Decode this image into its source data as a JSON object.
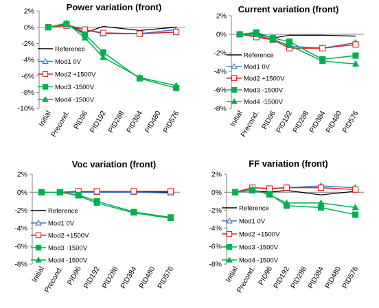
{
  "figure": {
    "categories": [
      "Initial",
      "Precond.",
      "PID96",
      "PID192",
      "PID288",
      "PID384",
      "PID480",
      "PID576"
    ],
    "series_style": [
      {
        "name": "Reference",
        "color": "#000000",
        "marker": "none"
      },
      {
        "name": "Mod1 0V",
        "color": "#4472c4",
        "marker": "triangle-open"
      },
      {
        "name": "Mod2 +1500V",
        "color": "#e0241b",
        "marker": "square-open"
      },
      {
        "name": "Mod3 -1500V",
        "color": "#00b050",
        "marker": "square-filled"
      },
      {
        "name": "Mod4 -1500V",
        "color": "#00b050",
        "marker": "triangle-filled"
      }
    ]
  },
  "chart_data": [
    {
      "type": "line",
      "title": "Power variation (front)",
      "xlabel": "",
      "ylabel": "",
      "ylim": [
        -10,
        2
      ],
      "yticks": [
        -10,
        -8,
        -6,
        -4,
        -2,
        0,
        2
      ],
      "ytick_labels": [
        "-10%",
        "-8%",
        "-6%",
        "-4%",
        "-2%",
        "0%",
        "2%"
      ],
      "categories": [
        "Initial",
        "Precond.",
        "PID96",
        "PID192",
        "PID288",
        "PID384",
        "PID480",
        "PID576"
      ],
      "legend": "center-left",
      "grid": false,
      "series": [
        {
          "name": "Reference",
          "values": [
            0,
            0.4,
            -0.7,
            0.1,
            null,
            -0.4,
            null,
            0.0
          ]
        },
        {
          "name": "Mod1 0V",
          "values": [
            0,
            0.3,
            -0.3,
            -0.8,
            null,
            -0.8,
            null,
            -0.3
          ]
        },
        {
          "name": "Mod2 +1500V",
          "values": [
            0,
            0.2,
            -0.3,
            -0.7,
            null,
            -0.8,
            null,
            -0.6
          ]
        },
        {
          "name": "Mod3 -1500V",
          "values": [
            0,
            0.4,
            -0.9,
            -3.1,
            null,
            -6.3,
            null,
            -7.5
          ]
        },
        {
          "name": "Mod4 -1500V",
          "values": [
            0,
            0.5,
            -1.3,
            -3.7,
            null,
            -6.2,
            null,
            -7.2
          ]
        }
      ]
    },
    {
      "type": "line",
      "title": "Current variation (front)",
      "xlabel": "",
      "ylabel": "",
      "ylim": [
        -8,
        2
      ],
      "yticks": [
        -8,
        -6,
        -4,
        -2,
        0,
        2
      ],
      "ytick_labels": [
        "-8%",
        "-6%",
        "-4%",
        "-2%",
        "0%",
        "2%"
      ],
      "categories": [
        "Initial",
        "Precond.",
        "PID96",
        "PID192",
        "PID288",
        "PID384",
        "PID480",
        "PID576"
      ],
      "legend": "lower-left",
      "grid": false,
      "series": [
        {
          "name": "Reference",
          "values": [
            0,
            0.1,
            -0.4,
            -0.1,
            null,
            -0.1,
            null,
            -0.2
          ]
        },
        {
          "name": "Mod1 0V",
          "values": [
            0,
            -0.2,
            -0.5,
            -1.3,
            null,
            -1.5,
            null,
            -0.9
          ]
        },
        {
          "name": "Mod2 +1500V",
          "values": [
            0,
            -0.3,
            -0.6,
            -1.5,
            null,
            -1.5,
            null,
            -1.1
          ]
        },
        {
          "name": "Mod3 -1500V",
          "values": [
            0,
            0.2,
            -0.4,
            -0.8,
            null,
            -2.7,
            null,
            -2.3
          ]
        },
        {
          "name": "Mod4 -1500V",
          "values": [
            0,
            0.0,
            -0.6,
            -1.2,
            null,
            -2.9,
            null,
            -3.2
          ]
        }
      ]
    },
    {
      "type": "line",
      "title": "Voc variation (front)",
      "xlabel": "",
      "ylabel": "",
      "ylim": [
        -8,
        2
      ],
      "yticks": [
        -8,
        -6,
        -4,
        -2,
        0,
        2
      ],
      "ytick_labels": [
        "-8%",
        "-6%",
        "-4%",
        "-2%",
        "0%",
        "2%"
      ],
      "categories": [
        "Initial",
        "Precond.",
        "PID96",
        "PID192",
        "PID288",
        "PID384",
        "PID480",
        "PID576"
      ],
      "legend": "lower-left",
      "grid": false,
      "series": [
        {
          "name": "Reference",
          "values": [
            0,
            0.0,
            0.0,
            0.0,
            null,
            0.0,
            null,
            0.0
          ]
        },
        {
          "name": "Mod1 0V",
          "values": [
            0,
            0.0,
            0.0,
            0.0,
            null,
            0.0,
            null,
            -0.1
          ]
        },
        {
          "name": "Mod2 +1500V",
          "values": [
            0,
            0.0,
            0.1,
            0.1,
            null,
            0.1,
            null,
            0.1
          ]
        },
        {
          "name": "Mod3 -1500V",
          "values": [
            0,
            0.0,
            -0.3,
            -1.0,
            null,
            -2.2,
            null,
            -2.8
          ]
        },
        {
          "name": "Mod4 -1500V",
          "values": [
            0,
            0.0,
            -0.4,
            -1.2,
            null,
            -2.3,
            null,
            -2.9
          ]
        }
      ]
    },
    {
      "type": "line",
      "title": "FF variation (front)",
      "xlabel": "",
      "ylabel": "",
      "ylim": [
        -8,
        2
      ],
      "yticks": [
        -8,
        -6,
        -4,
        -2,
        0,
        2
      ],
      "ytick_labels": [
        "-8%",
        "-6%",
        "-4%",
        "-2%",
        "0%",
        "2%"
      ],
      "categories": [
        "Initial",
        "Precond.",
        "PID96",
        "PID192",
        "PID288",
        "PID384",
        "PID480",
        "PID576"
      ],
      "legend": "lower-left",
      "grid": false,
      "series": [
        {
          "name": "Reference",
          "values": [
            0,
            0.2,
            0.0,
            0.2,
            null,
            -0.3,
            null,
            0.1
          ]
        },
        {
          "name": "Mod1 0V",
          "values": [
            0,
            0.5,
            0.4,
            0.5,
            null,
            0.7,
            null,
            0.5
          ]
        },
        {
          "name": "Mod2 +1500V",
          "values": [
            0,
            0.5,
            0.4,
            0.5,
            null,
            0.5,
            null,
            0.3
          ]
        },
        {
          "name": "Mod3 -1500V",
          "values": [
            0,
            0.2,
            -0.2,
            -1.5,
            null,
            -1.7,
            null,
            -2.5
          ]
        },
        {
          "name": "Mod4 -1500V",
          "values": [
            0,
            0.3,
            -0.3,
            -1.2,
            null,
            -1.2,
            null,
            -1.7
          ]
        }
      ]
    }
  ]
}
